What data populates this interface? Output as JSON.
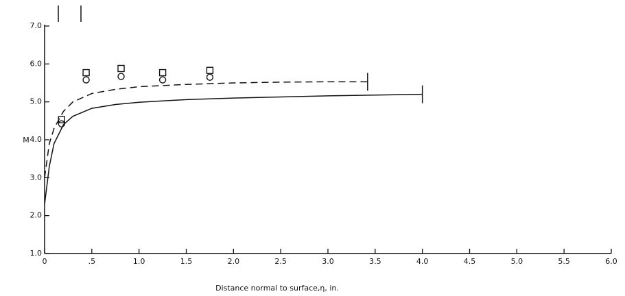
{
  "chart_data": {
    "type": "line",
    "x_label": "Distance normal to surface,η, in.",
    "y_label": "M",
    "xlim": [
      0,
      6.0
    ],
    "ylim": [
      1.0,
      7.0
    ],
    "xticks": [
      0,
      {
        "value": 0.5,
        "label": ".5"
      },
      {
        "value": 1.0,
        "label": "1.0"
      },
      1.5,
      {
        "value": 2.0,
        "label": "2.0"
      },
      2.5,
      {
        "value": 3.0,
        "label": "3.0"
      },
      3.5,
      {
        "value": 4.0,
        "label": "4.0"
      },
      4.5,
      {
        "value": 5.0,
        "label": "5.0"
      },
      5.5,
      {
        "value": 6.0,
        "label": "6.0"
      }
    ],
    "yticks": [
      {
        "value": 1.0,
        "label": "1.0"
      },
      {
        "value": 2.0,
        "label": "2.0"
      },
      {
        "value": 3.0,
        "label": "3.0"
      },
      {
        "value": 4.0,
        "label": "4.0"
      },
      {
        "value": 5.0,
        "label": "5.0"
      },
      {
        "value": 6.0,
        "label": "6.0"
      },
      {
        "value": 7.0,
        "label": "7.0"
      }
    ],
    "series": [
      {
        "style": "solid",
        "color": "#111111",
        "x": [
          0,
          0.05,
          0.1,
          0.2,
          0.3,
          0.5,
          0.75,
          1.0,
          1.5,
          2.0,
          2.5,
          3.0,
          3.5,
          4.0
        ],
        "values": [
          2.3,
          3.3,
          3.9,
          4.4,
          4.62,
          4.83,
          4.93,
          4.99,
          5.06,
          5.1,
          5.13,
          5.16,
          5.18,
          5.2
        ]
      },
      {
        "style": "dashed",
        "color": "#111111",
        "x": [
          0,
          0.05,
          0.1,
          0.2,
          0.3,
          0.5,
          0.75,
          1.0,
          1.5,
          2.0,
          2.5,
          3.0,
          3.42
        ],
        "values": [
          3.0,
          3.9,
          4.3,
          4.75,
          5.0,
          5.22,
          5.33,
          5.4,
          5.46,
          5.5,
          5.52,
          5.53,
          5.53
        ]
      },
      {
        "style": "square",
        "color": "#111111",
        "x": [
          0.18,
          0.44,
          0.81,
          1.25,
          1.75
        ],
        "values": [
          4.53,
          5.77,
          5.88,
          5.77,
          5.83
        ]
      },
      {
        "style": "circle",
        "color": "#111111",
        "x": [
          0.18,
          0.44,
          0.81,
          1.25,
          1.75
        ],
        "values": [
          4.42,
          5.58,
          5.67,
          5.58,
          5.65
        ]
      }
    ]
  }
}
